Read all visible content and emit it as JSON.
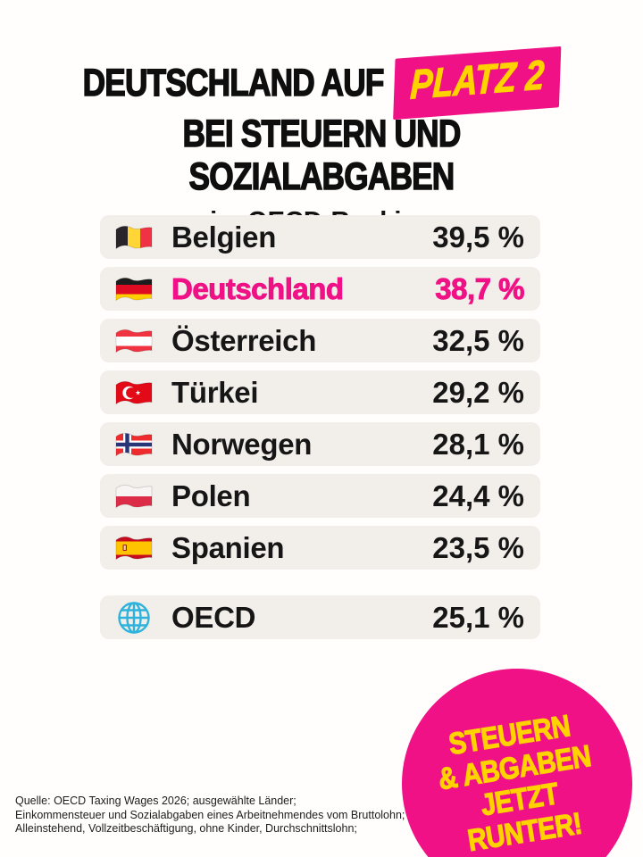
{
  "header": {
    "title_line1": "DEUTSCHLAND AUF",
    "badge_label": "PLATZ 2",
    "title_line2": "BEI STEUERN UND SOZIALABGABEN",
    "subtitle": "im OECD-Ranking"
  },
  "ranking": {
    "rows": [
      {
        "flag": "be",
        "country": "Belgien",
        "value": "39,5 %",
        "highlight": false
      },
      {
        "flag": "de",
        "country": "Deutschland",
        "value": "38,7 %",
        "highlight": true
      },
      {
        "flag": "at",
        "country": "Österreich",
        "value": "32,5 %",
        "highlight": false
      },
      {
        "flag": "tr",
        "country": "Türkei",
        "value": "29,2 %",
        "highlight": false
      },
      {
        "flag": "no",
        "country": "Norwegen",
        "value": "28,1 %",
        "highlight": false
      },
      {
        "flag": "pl",
        "country": "Polen",
        "value": "24,4 %",
        "highlight": false
      },
      {
        "flag": "es",
        "country": "Spanien",
        "value": "23,5 %",
        "highlight": false
      }
    ],
    "summary_row": {
      "flag": "globe",
      "country": "OECD",
      "value": "25,1 %",
      "highlight": false
    }
  },
  "sticker": {
    "lines": [
      "STEUERN",
      "& ABGABEN",
      "JETZT",
      "RUNTER!"
    ]
  },
  "footer": {
    "lines": [
      "Quelle: OECD Taxing Wages 2026; ausgewählte Länder;",
      "Einkommensteuer und Sozialabgaben eines Arbeitnehmendes vom Bruttolohn;",
      "Alleinstehend, Vollzeitbeschäftigung, ohne Kinder, Durchschnittslohn;"
    ]
  },
  "icons": {
    "be": "flag-belgium-icon",
    "de": "flag-germany-icon",
    "at": "flag-austria-icon",
    "tr": "flag-turkey-icon",
    "no": "flag-norway-icon",
    "pl": "flag-poland-icon",
    "es": "flag-spain-icon",
    "globe": "globe-icon"
  },
  "colors": {
    "brand_pink": "#EF1185",
    "accent_yellow": "#FFD200",
    "row_background": "#f2eeea",
    "text_black": "#111111",
    "globe_blue": "#2FB3DC"
  },
  "chart_data": {
    "type": "table",
    "title": "Deutschland auf Platz 2 bei Steuern und Sozialabgaben im OECD-Ranking",
    "unit": "%",
    "categories": [
      "Belgien",
      "Deutschland",
      "Österreich",
      "Türkei",
      "Norwegen",
      "Polen",
      "Spanien",
      "OECD"
    ],
    "values": [
      39.5,
      38.7,
      32.5,
      29.2,
      28.1,
      24.4,
      23.5,
      25.1
    ],
    "highlight": "Deutschland",
    "source": "OECD Taxing Wages 2026"
  }
}
